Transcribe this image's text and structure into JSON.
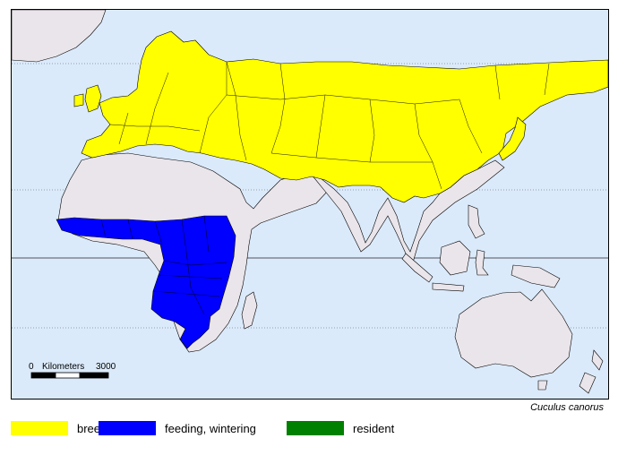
{
  "map": {
    "colors": {
      "ocean": "#dbeafb",
      "land": "#eae5ea",
      "breeding": "#ffff00",
      "wintering": "#0000ff",
      "resident": "#008000",
      "border": "#000000"
    },
    "scale_bar": {
      "start_label": "0",
      "unit_label": "Kilometers",
      "end_label": "3000"
    }
  },
  "species": "Cuculus canorus",
  "legend": [
    {
      "label": "breeding",
      "color": "#ffff00"
    },
    {
      "label": "feeding, wintering",
      "color": "#0000ff"
    },
    {
      "label": "resident",
      "color": "#008000"
    }
  ]
}
